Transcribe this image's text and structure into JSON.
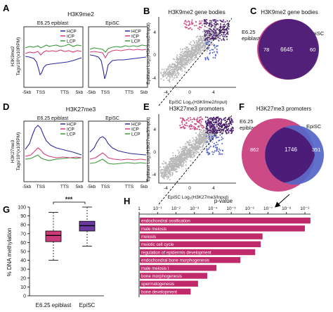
{
  "colors": {
    "hcp": "#2b2b9c",
    "icp": "#d0407a",
    "lcp": "#3a9a3a",
    "pink": "#cc4a86",
    "purple": "#4a1f6e",
    "blue": "#5566c8",
    "venn_purple": "#4b1d78",
    "bar": "#c02a6a"
  },
  "panel_letters": {
    "a": "A",
    "b": "B",
    "c": "C",
    "d": "D",
    "e": "E",
    "f": "F",
    "g": "G",
    "h": "H"
  },
  "panel_a": {
    "title": "H3K9me2",
    "left_label": "E6.25 epiblast",
    "right_label": "EpiSC",
    "ylabel_1": "H3K9me2",
    "ylabel_2": "Tags/10⁶(x10RPM)",
    "legend": [
      "HCP",
      "ICP",
      "LCP"
    ],
    "xticks": [
      "-5kb",
      "TSS",
      "TTS",
      "5kb"
    ]
  },
  "panel_b": {
    "title": "H3K9me2 gene bodies",
    "ylabel": "Epiblast Log₂(H3K9me2/Input)",
    "xlabel": "EpiSC Log₂(H3K9me2/Input)",
    "xticks": [
      "-4",
      "0",
      "4"
    ],
    "yticks": [
      "4",
      "0",
      "-4"
    ]
  },
  "panel_c": {
    "title": "H3K9me2 gene bodies",
    "left_label": "E6.25 epiblast",
    "right_label": "EpiSC",
    "left_count": "78",
    "center_count": "6645",
    "right_count": "60"
  },
  "panel_d": {
    "title": "H3K27me3",
    "left_label": "E6.25 epiblast",
    "right_label": "EpiSC",
    "ylabel_1": "H3K27me3",
    "ylabel_2": "Tags/10⁶(x10RPM)",
    "legend": [
      "HCP",
      "ICP",
      "LCP"
    ],
    "xticks": [
      "-5kb",
      "TSS",
      "TTS",
      "5kb"
    ]
  },
  "panel_e": {
    "title": "H3K27me3 promoters",
    "ylabel": "Epiblast Log₂(H3K27me3/Input)",
    "xlabel": "EpiSC Log₂(H3K27me3/Input)",
    "xticks": [
      "-4",
      "0",
      "4"
    ],
    "yticks": [
      "4",
      "0",
      "-4"
    ]
  },
  "panel_f": {
    "title": "H3K27me3 promoters",
    "left_label": "E6.25 epiblast",
    "right_label": "EpiSC",
    "left_count": "862",
    "center_count": "1746",
    "right_count": "351"
  },
  "panel_g": {
    "ylabel": "% DNA methylation",
    "significance": "***",
    "chart_data": {
      "type": "box",
      "categories": [
        "E6.25 epiblast",
        "EpiSC"
      ],
      "ylim": [
        0,
        100
      ],
      "yticks": [
        "0",
        "10",
        "20",
        "30",
        "40",
        "50",
        "60",
        "70",
        "80",
        "90",
        "100"
      ],
      "boxes": [
        {
          "name": "E6.25 epiblast",
          "min": 40,
          "q1": 61,
          "median": 68,
          "q3": 73,
          "max": 94,
          "color": "#cc3a7a"
        },
        {
          "name": "EpiSC",
          "min": 56,
          "q1": 73,
          "median": 79,
          "q3": 84,
          "max": 100,
          "color": "#6a3aa0"
        }
      ]
    }
  },
  "panel_h": {
    "xlabel": "p-value",
    "xticks": [
      "1",
      "10⁻¹",
      "10⁻²",
      "10⁻³",
      "10⁻⁴",
      "10⁻⁵",
      "10⁻⁶",
      "10⁻⁷",
      "10⁻⁸",
      "10⁻⁹"
    ],
    "chart_data": {
      "type": "bar",
      "orientation": "horizontal",
      "x_axis": "-log10(p-value)",
      "xlim": [
        0,
        9
      ],
      "categories": [
        "endochondral ossification",
        "male meiosis",
        "meiosis",
        "meiotic cell cycle",
        "regulation of epidermis development",
        "endochondral bone morphogenesis",
        "male meiosis I",
        "bone morphogenesis",
        "spermatogenesis",
        "bone development"
      ],
      "values": [
        9.3,
        9.0,
        6.7,
        6.6,
        6.3,
        5.5,
        4.2,
        3.7,
        3.2,
        2.8
      ]
    }
  }
}
